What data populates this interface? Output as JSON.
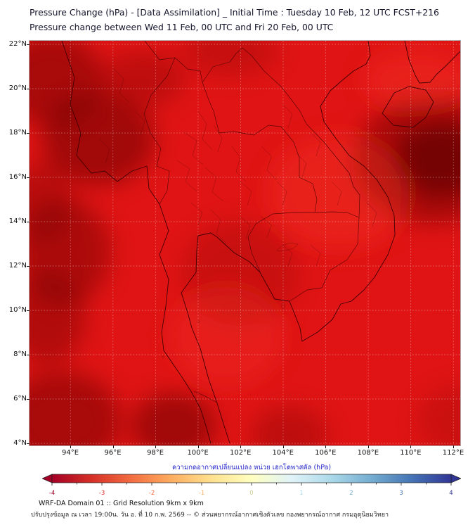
{
  "header": {
    "title_line1": "Pressure Change (hPa) - [Data Assimilation] _ Initial Time : Tuesday 10 Feb, 12 UTC FCST+216",
    "title_line2": "Pressure change between Wed 11 Feb, 00 UTC and Fri 20 Feb, 00 UTC"
  },
  "map": {
    "lat_ticks": [
      "22°N",
      "20°N",
      "18°N",
      "16°N",
      "14°N",
      "12°N",
      "10°N",
      "8°N",
      "6°N",
      "4°N"
    ],
    "lon_ticks": [
      "94°E",
      "96°E",
      "98°E",
      "100°E",
      "102°E",
      "104°E",
      "106°E",
      "108°E",
      "110°E",
      "112°E"
    ],
    "base_color": "#e01414"
  },
  "colorbar": {
    "label": "ความกดอากาศเปลี่ยนแปลง หน่วย เฮกโตพาสคัล (hPa)",
    "unit": "hPa",
    "min": -4,
    "max": 4,
    "ticks": [
      "-4",
      "-3",
      "-2",
      "-1",
      "0",
      "1",
      "2",
      "3",
      "4"
    ],
    "tick_colors": [
      "#a50026",
      "#d73027",
      "#f46d43",
      "#fdae61",
      "#cfcf9a",
      "#abd9e9",
      "#74add1",
      "#4575b4",
      "#313695"
    ],
    "gradient": [
      "#a50026",
      "#d73027",
      "#f46d43",
      "#fdae61",
      "#fee090",
      "#ffffbf",
      "#e0f3f8",
      "#abd9e9",
      "#74add1",
      "#4575b4",
      "#313695"
    ]
  },
  "footer": {
    "line1": "WRF-DA Domain 01 :: Grid Resolution 9km x 9km",
    "line2": "ปรับปรุงข้อมูล ณ เวลา 19:00น. วัน อ. ที่ 10 ก.พ. 2569 -- © ส่วนพยากรณ์อากาศเชิงตัวเลข กองพยากรณ์อากาศ กรมอุตุนิยมวิทยา"
  }
}
